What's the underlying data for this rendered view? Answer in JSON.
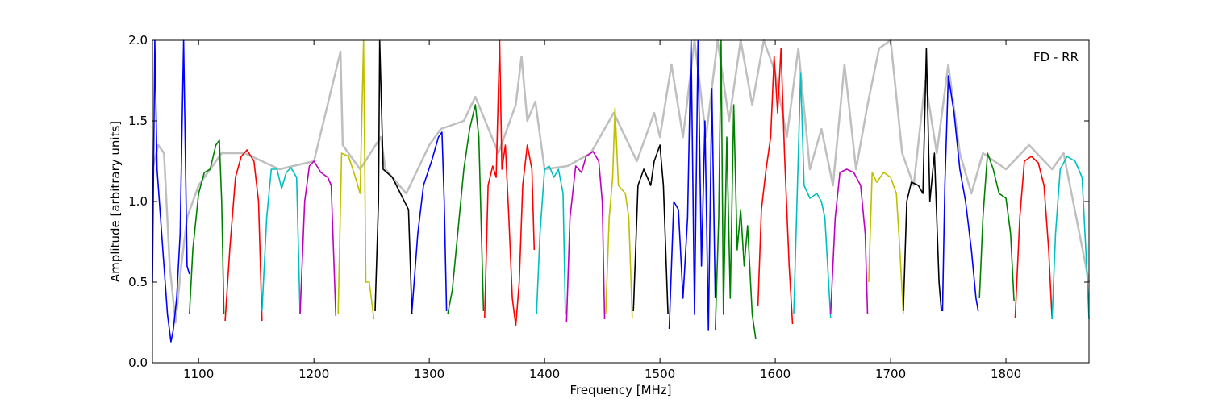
{
  "chart_data": {
    "type": "line",
    "xlabel": "Frequency [MHz]",
    "ylabel": "Amplitude [arbitrary units]",
    "annotation": "FD - RR",
    "xlim": [
      1060,
      1872
    ],
    "ylim": [
      0.0,
      2.0
    ],
    "xticks": [
      1100,
      1200,
      1300,
      1400,
      1500,
      1600,
      1700,
      1800
    ],
    "xtick_labels": [
      "1100",
      "1200",
      "1300",
      "1400",
      "1500",
      "1600",
      "1700",
      "1800"
    ],
    "yticks": [
      0.0,
      0.5,
      1.0,
      1.5,
      2.0
    ],
    "ytick_labels": [
      "0.0",
      "0.5",
      "1.0",
      "1.5",
      "2.0"
    ],
    "grid": false,
    "background_series_color": "#bfbfbf",
    "colors": {
      "b": "#0000ff",
      "g": "#008000",
      "r": "#ff0000",
      "c": "#00bfbf",
      "m": "#bf00bf",
      "y": "#bfbf00",
      "k": "#000000"
    },
    "background_series": [
      [
        1060,
        1.2
      ],
      [
        1065,
        1.35
      ],
      [
        1070,
        1.3
      ],
      [
        1075,
        0.6
      ],
      [
        1080,
        0.25
      ],
      [
        1085,
        0.6
      ],
      [
        1090,
        0.9
      ],
      [
        1100,
        1.1
      ],
      [
        1110,
        1.2
      ],
      [
        1120,
        1.3
      ],
      [
        1140,
        1.3
      ],
      [
        1170,
        1.2
      ],
      [
        1200,
        1.25
      ],
      [
        1223,
        1.93
      ],
      [
        1225,
        1.35
      ],
      [
        1240,
        1.2
      ],
      [
        1258,
        1.4
      ],
      [
        1262,
        1.2
      ],
      [
        1280,
        1.05
      ],
      [
        1300,
        1.35
      ],
      [
        1310,
        1.45
      ],
      [
        1330,
        1.5
      ],
      [
        1340,
        1.65
      ],
      [
        1360,
        1.3
      ],
      [
        1375,
        1.6
      ],
      [
        1380,
        1.9
      ],
      [
        1385,
        1.5
      ],
      [
        1392,
        1.62
      ],
      [
        1400,
        1.2
      ],
      [
        1420,
        1.22
      ],
      [
        1440,
        1.3
      ],
      [
        1460,
        1.55
      ],
      [
        1480,
        1.25
      ],
      [
        1495,
        1.55
      ],
      [
        1500,
        1.4
      ],
      [
        1510,
        1.85
      ],
      [
        1520,
        1.4
      ],
      [
        1530,
        2.0
      ],
      [
        1540,
        1.4
      ],
      [
        1550,
        2.0
      ],
      [
        1560,
        1.5
      ],
      [
        1570,
        2.0
      ],
      [
        1580,
        1.6
      ],
      [
        1590,
        2.0
      ],
      [
        1600,
        1.8
      ],
      [
        1610,
        1.4
      ],
      [
        1620,
        1.95
      ],
      [
        1630,
        1.2
      ],
      [
        1640,
        1.45
      ],
      [
        1650,
        1.1
      ],
      [
        1660,
        1.85
      ],
      [
        1670,
        1.2
      ],
      [
        1680,
        1.6
      ],
      [
        1690,
        1.95
      ],
      [
        1700,
        2.0
      ],
      [
        1710,
        1.3
      ],
      [
        1720,
        1.1
      ],
      [
        1730,
        1.75
      ],
      [
        1740,
        1.3
      ],
      [
        1750,
        1.85
      ],
      [
        1760,
        1.3
      ],
      [
        1770,
        1.05
      ],
      [
        1780,
        1.3
      ],
      [
        1800,
        1.2
      ],
      [
        1820,
        1.35
      ],
      [
        1840,
        1.2
      ],
      [
        1850,
        1.3
      ],
      [
        1872,
        0.5
      ]
    ],
    "series": [
      {
        "color": "b",
        "points": [
          [
            1060,
            0.5
          ],
          [
            1062,
            2.0
          ],
          [
            1064,
            1.2
          ],
          [
            1067,
            0.9
          ],
          [
            1070,
            0.6
          ],
          [
            1073,
            0.3
          ],
          [
            1076,
            0.13
          ],
          [
            1078,
            0.2
          ],
          [
            1081,
            0.4
          ],
          [
            1084,
            0.8
          ],
          [
            1087,
            2.0
          ],
          [
            1090,
            0.6
          ],
          [
            1092,
            0.55
          ]
        ]
      },
      {
        "color": "g",
        "points": [
          [
            1092,
            0.3
          ],
          [
            1095,
            0.7
          ],
          [
            1100,
            1.05
          ],
          [
            1105,
            1.18
          ],
          [
            1110,
            1.2
          ],
          [
            1115,
            1.35
          ],
          [
            1118,
            1.38
          ],
          [
            1120,
            1.0
          ],
          [
            1122,
            0.3
          ]
        ]
      },
      {
        "color": "r",
        "points": [
          [
            1123,
            0.26
          ],
          [
            1127,
            0.7
          ],
          [
            1132,
            1.15
          ],
          [
            1137,
            1.28
          ],
          [
            1142,
            1.32
          ],
          [
            1148,
            1.25
          ],
          [
            1152,
            1.0
          ],
          [
            1155,
            0.26
          ]
        ]
      },
      {
        "color": "c",
        "points": [
          [
            1155,
            0.32
          ],
          [
            1159,
            0.9
          ],
          [
            1163,
            1.2
          ],
          [
            1168,
            1.2
          ],
          [
            1172,
            1.08
          ],
          [
            1176,
            1.18
          ],
          [
            1180,
            1.21
          ],
          [
            1185,
            1.15
          ],
          [
            1188,
            0.3
          ]
        ]
      },
      {
        "color": "m",
        "points": [
          [
            1188,
            0.3
          ],
          [
            1192,
            1.0
          ],
          [
            1196,
            1.22
          ],
          [
            1200,
            1.25
          ],
          [
            1206,
            1.18
          ],
          [
            1212,
            1.15
          ],
          [
            1215,
            1.1
          ],
          [
            1219,
            0.29
          ]
        ]
      },
      {
        "color": "y",
        "points": [
          [
            1221,
            0.3
          ],
          [
            1224,
            1.3
          ],
          [
            1230,
            1.28
          ],
          [
            1236,
            1.15
          ],
          [
            1240,
            1.05
          ],
          [
            1243,
            2.0
          ],
          [
            1245,
            0.5
          ],
          [
            1248,
            0.5
          ],
          [
            1252,
            0.27
          ]
        ]
      },
      {
        "color": "k",
        "points": [
          [
            1253,
            0.32
          ],
          [
            1256,
            1.0
          ],
          [
            1257,
            2.0
          ],
          [
            1260,
            1.2
          ],
          [
            1268,
            1.15
          ],
          [
            1275,
            1.05
          ],
          [
            1282,
            0.95
          ],
          [
            1285,
            0.3
          ]
        ]
      },
      {
        "color": "b",
        "points": [
          [
            1285,
            0.32
          ],
          [
            1290,
            0.8
          ],
          [
            1295,
            1.1
          ],
          [
            1302,
            1.25
          ],
          [
            1308,
            1.4
          ],
          [
            1311,
            1.43
          ],
          [
            1313,
            1.0
          ],
          [
            1315,
            0.32
          ]
        ]
      },
      {
        "color": "g",
        "points": [
          [
            1316,
            0.3
          ],
          [
            1320,
            0.45
          ],
          [
            1326,
            0.9
          ],
          [
            1330,
            1.2
          ],
          [
            1335,
            1.45
          ],
          [
            1340,
            1.6
          ],
          [
            1343,
            1.4
          ],
          [
            1347,
            0.32
          ]
        ]
      },
      {
        "color": "r",
        "points": [
          [
            1348,
            0.28
          ],
          [
            1351,
            1.1
          ],
          [
            1355,
            1.22
          ],
          [
            1358,
            1.15
          ],
          [
            1361,
            2.0
          ],
          [
            1363,
            1.2
          ],
          [
            1366,
            1.35
          ],
          [
            1369,
            0.9
          ],
          [
            1372,
            0.4
          ],
          [
            1375,
            0.23
          ],
          [
            1378,
            0.5
          ],
          [
            1381,
            1.1
          ],
          [
            1385,
            1.35
          ],
          [
            1389,
            1.2
          ],
          [
            1391,
            0.7
          ]
        ]
      },
      {
        "color": "c",
        "points": [
          [
            1393,
            0.3
          ],
          [
            1396,
            0.8
          ],
          [
            1400,
            1.2
          ],
          [
            1404,
            1.22
          ],
          [
            1408,
            1.15
          ],
          [
            1412,
            1.2
          ],
          [
            1416,
            1.05
          ],
          [
            1418,
            0.3
          ]
        ]
      },
      {
        "color": "m",
        "points": [
          [
            1419,
            0.25
          ],
          [
            1422,
            0.9
          ],
          [
            1427,
            1.22
          ],
          [
            1432,
            1.18
          ],
          [
            1436,
            1.28
          ],
          [
            1442,
            1.31
          ],
          [
            1447,
            1.25
          ],
          [
            1450,
            1.0
          ],
          [
            1452,
            0.27
          ]
        ]
      },
      {
        "color": "y",
        "points": [
          [
            1453,
            0.3
          ],
          [
            1456,
            0.9
          ],
          [
            1459,
            1.15
          ],
          [
            1461,
            1.58
          ],
          [
            1464,
            1.1
          ],
          [
            1470,
            1.05
          ],
          [
            1473,
            0.9
          ],
          [
            1476,
            0.28
          ]
        ]
      },
      {
        "color": "k",
        "points": [
          [
            1477,
            0.32
          ],
          [
            1481,
            1.1
          ],
          [
            1486,
            1.2
          ],
          [
            1492,
            1.1
          ],
          [
            1495,
            1.25
          ],
          [
            1500,
            1.35
          ],
          [
            1503,
            1.1
          ],
          [
            1507,
            0.3
          ]
        ]
      },
      {
        "color": "b",
        "points": [
          [
            1508,
            0.21
          ],
          [
            1512,
            1.0
          ],
          [
            1516,
            0.95
          ],
          [
            1520,
            0.4
          ],
          [
            1524,
            0.9
          ],
          [
            1527,
            2.0
          ],
          [
            1530,
            0.3
          ],
          [
            1533,
            2.0
          ],
          [
            1536,
            0.6
          ],
          [
            1539,
            1.5
          ],
          [
            1542,
            0.2
          ],
          [
            1545,
            1.7
          ],
          [
            1548,
            0.4
          ]
        ]
      },
      {
        "color": "g",
        "points": [
          [
            1548,
            0.2
          ],
          [
            1551,
            0.9
          ],
          [
            1553,
            2.0
          ],
          [
            1555,
            0.3
          ],
          [
            1558,
            1.4
          ],
          [
            1561,
            0.4
          ],
          [
            1564,
            1.6
          ],
          [
            1567,
            0.7
          ],
          [
            1570,
            0.95
          ],
          [
            1573,
            0.6
          ],
          [
            1576,
            0.85
          ],
          [
            1580,
            0.3
          ],
          [
            1583,
            0.15
          ]
        ]
      },
      {
        "color": "r",
        "points": [
          [
            1585,
            0.35
          ],
          [
            1588,
            0.95
          ],
          [
            1592,
            1.2
          ],
          [
            1596,
            1.4
          ],
          [
            1599,
            1.9
          ],
          [
            1602,
            1.55
          ],
          [
            1605,
            1.95
          ],
          [
            1608,
            1.3
          ],
          [
            1612,
            0.6
          ],
          [
            1615,
            0.24
          ]
        ]
      },
      {
        "color": "c",
        "points": [
          [
            1616,
            0.3
          ],
          [
            1619,
            1.05
          ],
          [
            1622,
            1.8
          ],
          [
            1625,
            1.1
          ],
          [
            1630,
            1.02
          ],
          [
            1636,
            1.05
          ],
          [
            1640,
            1.0
          ],
          [
            1643,
            0.9
          ],
          [
            1648,
            0.28
          ]
        ]
      },
      {
        "color": "m",
        "points": [
          [
            1648,
            0.3
          ],
          [
            1652,
            0.9
          ],
          [
            1656,
            1.18
          ],
          [
            1662,
            1.2
          ],
          [
            1668,
            1.18
          ],
          [
            1674,
            1.1
          ],
          [
            1678,
            0.8
          ],
          [
            1680,
            0.3
          ]
        ]
      },
      {
        "color": "y",
        "points": [
          [
            1681,
            0.5
          ],
          [
            1684,
            1.18
          ],
          [
            1688,
            1.12
          ],
          [
            1694,
            1.18
          ],
          [
            1700,
            1.15
          ],
          [
            1705,
            1.05
          ],
          [
            1708,
            0.7
          ],
          [
            1711,
            0.3
          ]
        ]
      },
      {
        "color": "k",
        "points": [
          [
            1711,
            0.32
          ],
          [
            1714,
            1.0
          ],
          [
            1718,
            1.12
          ],
          [
            1724,
            1.1
          ],
          [
            1728,
            1.05
          ],
          [
            1731,
            1.95
          ],
          [
            1734,
            1.0
          ],
          [
            1738,
            1.3
          ],
          [
            1742,
            0.5
          ],
          [
            1744,
            0.32
          ]
        ]
      },
      {
        "color": "b",
        "points": [
          [
            1745,
            0.32
          ],
          [
            1747,
            1.1
          ],
          [
            1750,
            1.78
          ],
          [
            1755,
            1.55
          ],
          [
            1760,
            1.2
          ],
          [
            1765,
            1.0
          ],
          [
            1770,
            0.7
          ],
          [
            1774,
            0.4
          ],
          [
            1776,
            0.32
          ]
        ]
      },
      {
        "color": "g",
        "points": [
          [
            1777,
            0.4
          ],
          [
            1780,
            0.9
          ],
          [
            1784,
            1.3
          ],
          [
            1789,
            1.2
          ],
          [
            1794,
            1.05
          ],
          [
            1800,
            1.02
          ],
          [
            1804,
            0.8
          ],
          [
            1807,
            0.38
          ]
        ]
      },
      {
        "color": "r",
        "points": [
          [
            1808,
            0.28
          ],
          [
            1812,
            0.9
          ],
          [
            1816,
            1.25
          ],
          [
            1822,
            1.28
          ],
          [
            1828,
            1.24
          ],
          [
            1833,
            1.1
          ],
          [
            1837,
            0.7
          ],
          [
            1840,
            0.27
          ]
        ]
      },
      {
        "color": "c",
        "points": [
          [
            1840,
            0.27
          ],
          [
            1843,
            0.8
          ],
          [
            1847,
            1.2
          ],
          [
            1853,
            1.28
          ],
          [
            1860,
            1.25
          ],
          [
            1866,
            1.15
          ],
          [
            1870,
            0.6
          ],
          [
            1872,
            0.27
          ]
        ]
      }
    ]
  }
}
